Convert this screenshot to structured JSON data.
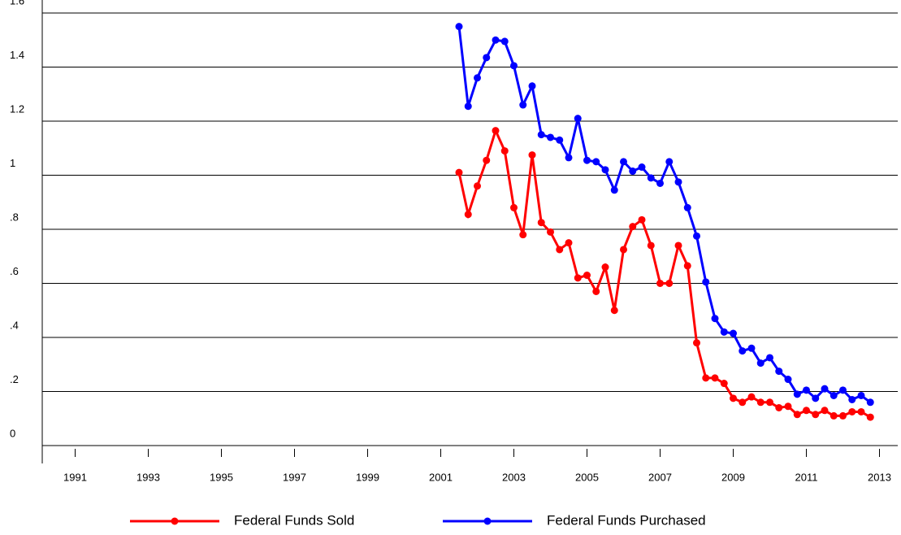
{
  "chart_data": {
    "type": "line",
    "x": [
      2001.5,
      2001.75,
      2002,
      2002.25,
      2002.5,
      2002.75,
      2003,
      2003.25,
      2003.5,
      2003.75,
      2004,
      2004.25,
      2004.5,
      2004.75,
      2005,
      2005.25,
      2005.5,
      2005.75,
      2006,
      2006.25,
      2006.5,
      2006.75,
      2007,
      2007.25,
      2007.5,
      2007.75,
      2008,
      2008.25,
      2008.5,
      2008.75,
      2009,
      2009.25,
      2009.5,
      2009.75,
      2010,
      2010.25,
      2010.5,
      2010.75,
      2011,
      2011.25,
      2011.5,
      2011.75,
      2012,
      2012.25,
      2012.5,
      2012.75
    ],
    "series": [
      {
        "name": "Federal Funds Sold",
        "color": "#ff0000",
        "values": [
          1.01,
          0.855,
          0.96,
          1.055,
          1.165,
          1.09,
          0.88,
          0.78,
          1.075,
          0.825,
          0.79,
          0.725,
          0.75,
          0.62,
          0.63,
          0.57,
          0.66,
          0.5,
          0.725,
          0.81,
          0.835,
          0.74,
          0.6,
          0.6,
          0.74,
          0.665,
          0.38,
          0.25,
          0.25,
          0.23,
          0.175,
          0.16,
          0.18,
          0.16,
          0.16,
          0.14,
          0.145,
          0.115,
          0.13,
          0.115,
          0.13,
          0.11,
          0.11,
          0.125,
          0.125,
          0.105
        ]
      },
      {
        "name": "Federal Funds Purchased",
        "color": "#0000ff",
        "values": [
          1.55,
          1.255,
          1.36,
          1.435,
          1.5,
          1.495,
          1.405,
          1.26,
          1.33,
          1.15,
          1.14,
          1.13,
          1.065,
          1.21,
          1.055,
          1.05,
          1.02,
          0.945,
          1.05,
          1.015,
          1.03,
          0.99,
          0.97,
          1.05,
          0.975,
          0.88,
          0.775,
          0.605,
          0.47,
          0.42,
          0.415,
          0.35,
          0.36,
          0.305,
          0.325,
          0.275,
          0.245,
          0.19,
          0.205,
          0.175,
          0.21,
          0.185,
          0.205,
          0.17,
          0.185,
          0.16
        ]
      }
    ],
    "xlim": [
      1990.1,
      2013.5
    ],
    "xticks": [
      1991,
      1993,
      1995,
      1997,
      1999,
      2001,
      2003,
      2005,
      2007,
      2009,
      2011,
      2013
    ],
    "ylim": [
      0,
      1.6
    ],
    "yticks": [
      0,
      {
        "value": 0.2,
        "label": ".2"
      },
      {
        "value": 0.4,
        "label": ".4"
      },
      {
        "value": 0.6,
        "label": ".6"
      },
      {
        "value": 0.8,
        "label": ".8"
      },
      1,
      1.2,
      1.4,
      1.6
    ],
    "grid": true,
    "legend": "bottom"
  }
}
